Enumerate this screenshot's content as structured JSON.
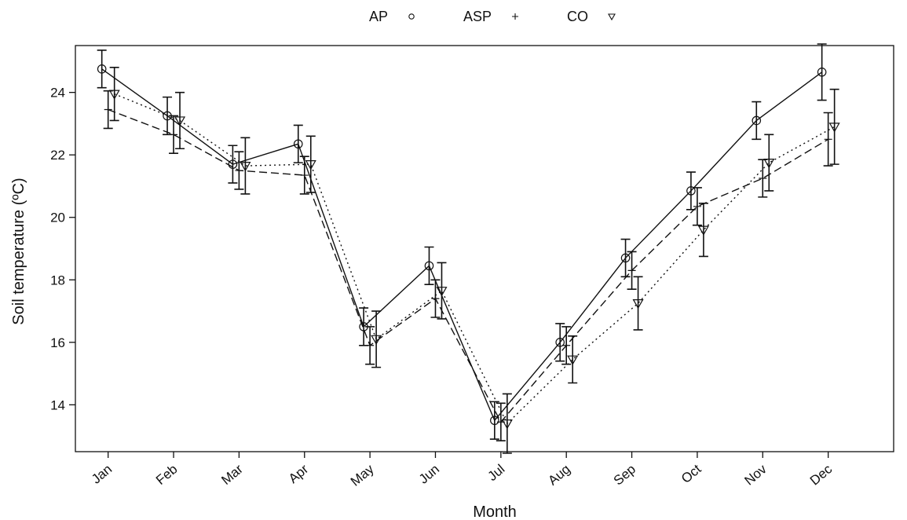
{
  "chart_data": {
    "type": "line",
    "xlabel": "Month",
    "ylabel": "Soil temperature (ºC)",
    "categories": [
      "Jan",
      "Feb",
      "Mar",
      "Apr",
      "May",
      "Jun",
      "Jul",
      "Aug",
      "Sep",
      "Oct",
      "Nov",
      "Dec"
    ],
    "ylim": [
      12.5,
      25.5
    ],
    "yticks": [
      14,
      16,
      18,
      20,
      22,
      24
    ],
    "grid": false,
    "legend_position": "top",
    "series": [
      {
        "name": "AP",
        "marker": "circle",
        "line": "solid",
        "values": [
          24.75,
          23.25,
          21.7,
          22.35,
          16.5,
          18.45,
          13.5,
          16.0,
          18.7,
          20.85,
          23.1,
          24.65
        ],
        "error": [
          0.6,
          0.6,
          0.6,
          0.6,
          0.6,
          0.6,
          0.6,
          0.6,
          0.6,
          0.6,
          0.6,
          0.9
        ]
      },
      {
        "name": "ASP",
        "marker": "plus",
        "line": "dashed",
        "values": [
          23.45,
          22.65,
          21.5,
          21.35,
          15.9,
          17.4,
          13.45,
          15.9,
          18.3,
          20.35,
          21.25,
          22.5
        ],
        "error": [
          0.6,
          0.6,
          0.6,
          0.6,
          0.6,
          0.6,
          0.6,
          0.6,
          0.6,
          0.6,
          0.6,
          0.85
        ]
      },
      {
        "name": "CO",
        "marker": "triangle-down",
        "line": "dotted",
        "values": [
          23.95,
          23.1,
          21.65,
          21.7,
          16.1,
          17.65,
          13.4,
          15.45,
          17.25,
          19.6,
          21.75,
          22.9
        ],
        "error": [
          0.85,
          0.9,
          0.9,
          0.9,
          0.9,
          0.9,
          0.95,
          0.75,
          0.85,
          0.85,
          0.9,
          1.2
        ]
      }
    ]
  }
}
